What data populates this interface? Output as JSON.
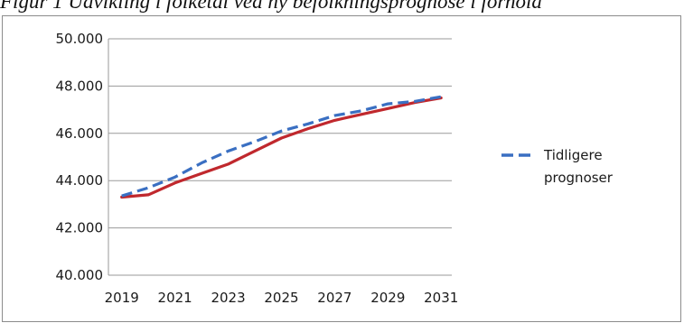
{
  "caption": "Figur 1 Udvikling i folketal ved ny befolkningsprognose i forhold",
  "chart_data": {
    "type": "line",
    "title": "",
    "xlabel": "",
    "ylabel": "",
    "ylim": [
      40000,
      50000
    ],
    "xlim": [
      2018.5,
      2031.4
    ],
    "y_ticks": [
      40000,
      42000,
      44000,
      46000,
      48000,
      50000
    ],
    "y_tick_labels": [
      "40.000",
      "42.000",
      "44.000",
      "46.000",
      "48.000",
      "50.000"
    ],
    "x_ticks": [
      2019,
      2021,
      2023,
      2025,
      2027,
      2029,
      2031
    ],
    "x_tick_labels": [
      "2019",
      "2021",
      "2023",
      "2025",
      "2027",
      "2029",
      "2031"
    ],
    "grid": "horizontal",
    "legend_position": "right",
    "series": [
      {
        "key": "new",
        "color": "#c0282d",
        "dash": "solid",
        "x": [
          2019,
          2020,
          2021,
          2022,
          2023,
          2024,
          2025,
          2026,
          2027,
          2028,
          2029,
          2030,
          2031
        ],
        "values": [
          43300,
          43400,
          43900,
          44300,
          44700,
          45250,
          45800,
          46200,
          46550,
          46800,
          47050,
          47300,
          47500
        ]
      },
      {
        "key": "old",
        "name": "Tidligere prognoser",
        "color": "#3a6fc2",
        "dash": "dashed",
        "x": [
          2019,
          2020,
          2021,
          2022,
          2023,
          2024,
          2025,
          2026,
          2027,
          2028,
          2029,
          2030,
          2031
        ],
        "values": [
          43350,
          43700,
          44150,
          44750,
          45250,
          45650,
          46100,
          46400,
          46750,
          46950,
          47250,
          47350,
          47550
        ]
      }
    ],
    "legend": {
      "line1": "Tidligere",
      "line2": "prognoser"
    }
  }
}
